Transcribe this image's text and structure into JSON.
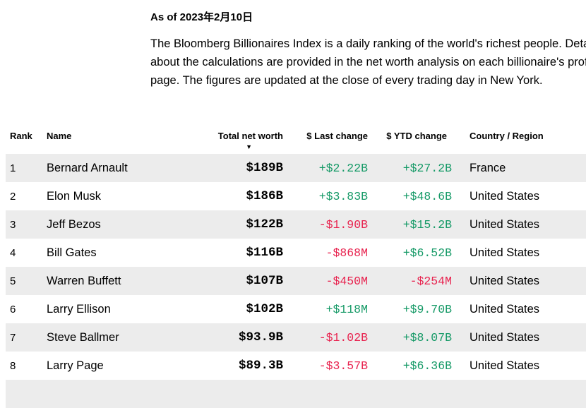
{
  "intro": {
    "as_of": "As of 2023年2月10日",
    "lines": [
      "The Bloomberg Billionaires Index is a daily ranking of the world's richest people. Details",
      "about the calculations are provided in the net worth analysis on each billionaire's profile",
      "page. The figures are updated at the close of every trading day in New York."
    ]
  },
  "table": {
    "columns": {
      "rank": "Rank",
      "name": "Name",
      "net_worth": "Total net worth",
      "last_change": "$ Last change",
      "ytd_change": "$ YTD change",
      "country": "Country / Region"
    },
    "sort_indicator": "▼",
    "colors": {
      "positive": "#169a67",
      "negative": "#e8234f",
      "stripe": "#ececec"
    },
    "rows": [
      {
        "rank": "1",
        "name": "Bernard Arnault",
        "net_worth": "$189B",
        "last_change": "+$2.22B",
        "ytd_change": "+$27.2B",
        "country": "France"
      },
      {
        "rank": "2",
        "name": "Elon Musk",
        "net_worth": "$186B",
        "last_change": "+$3.83B",
        "ytd_change": "+$48.6B",
        "country": "United States"
      },
      {
        "rank": "3",
        "name": "Jeff Bezos",
        "net_worth": "$122B",
        "last_change": "-$1.90B",
        "ytd_change": "+$15.2B",
        "country": "United States"
      },
      {
        "rank": "4",
        "name": "Bill Gates",
        "net_worth": "$116B",
        "last_change": "-$868M",
        "ytd_change": "+$6.52B",
        "country": "United States"
      },
      {
        "rank": "5",
        "name": "Warren Buffett",
        "net_worth": "$107B",
        "last_change": "-$450M",
        "ytd_change": "-$254M",
        "country": "United States"
      },
      {
        "rank": "6",
        "name": "Larry Ellison",
        "net_worth": "$102B",
        "last_change": "+$118M",
        "ytd_change": "+$9.70B",
        "country": "United States"
      },
      {
        "rank": "7",
        "name": "Steve Ballmer",
        "net_worth": "$93.9B",
        "last_change": "-$1.02B",
        "ytd_change": "+$8.07B",
        "country": "United States"
      },
      {
        "rank": "8",
        "name": "Larry Page",
        "net_worth": "$89.3B",
        "last_change": "-$3.57B",
        "ytd_change": "+$6.36B",
        "country": "United States"
      }
    ]
  }
}
